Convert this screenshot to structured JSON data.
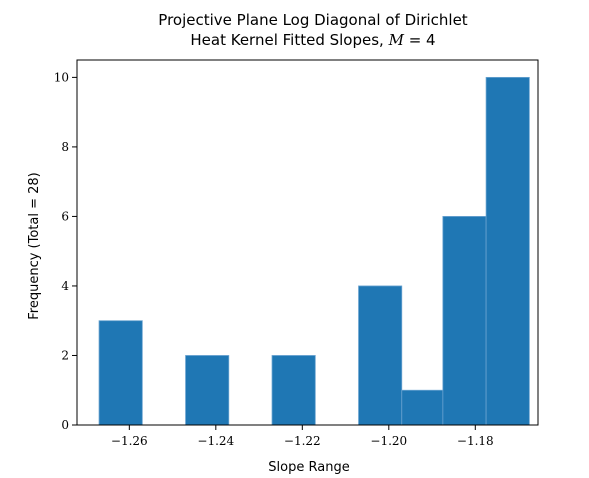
{
  "chart_data": {
    "type": "bar",
    "title_line1": "Projective Plane Log Diagonal of Dirichlet",
    "title_line2_prefix": "Heat Kernel Fitted Slopes, ",
    "title_line2_math": "M",
    "title_line2_suffix": " = 4",
    "xlabel": "Slope Range",
    "ylabel": "Frequency (Total = 28)",
    "xlim": [
      -1.2721,
      -1.1655
    ],
    "ylim": [
      0,
      10.5
    ],
    "xticks": [
      -1.26,
      -1.24,
      -1.22,
      -1.2,
      -1.18
    ],
    "xtick_labels": [
      "−1.26",
      "−1.24",
      "−1.22",
      "−1.20",
      "−1.18"
    ],
    "yticks": [
      0,
      2,
      4,
      6,
      8,
      10
    ],
    "ytick_labels": [
      "0",
      "2",
      "4",
      "6",
      "8",
      "10"
    ],
    "bin_edges": [
      -1.267,
      -1.257,
      -1.247,
      -1.237,
      -1.227,
      -1.217,
      -1.207,
      -1.197,
      -1.1875,
      -1.1775,
      -1.1675
    ],
    "values": [
      3,
      0,
      2,
      0,
      2,
      0,
      4,
      1,
      6,
      10
    ],
    "bar_color": "#1f77b4",
    "bar_edge_color": "#6aa3d0",
    "grid": false
  }
}
